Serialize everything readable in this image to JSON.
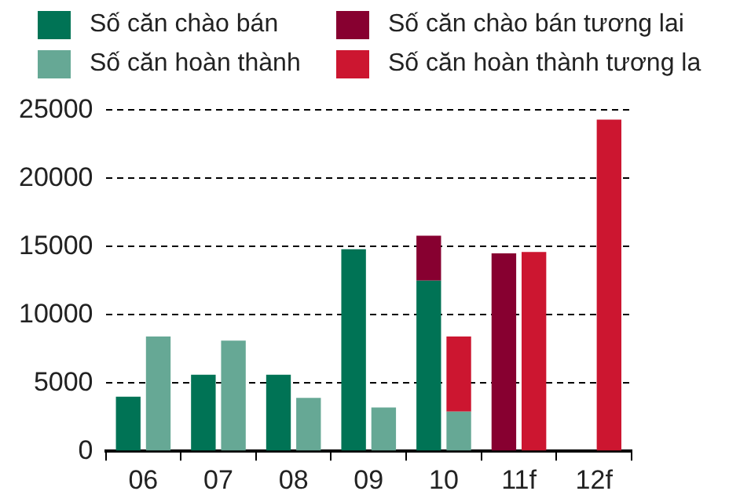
{
  "chart_data": {
    "type": "bar",
    "categories": [
      "06",
      "07",
      "08",
      "09",
      "10",
      "11f",
      "12f"
    ],
    "legend": "top",
    "grid": "y",
    "ylim": [
      0,
      25000
    ],
    "yticks": [
      0,
      5000,
      10000,
      15000,
      20000,
      25000
    ],
    "series": [
      {
        "name": "Số căn chào bán",
        "color": "#007355",
        "values": [
          4000,
          5600,
          5600,
          14800,
          12500,
          null,
          null
        ]
      },
      {
        "name": "Số căn chào bán tương lai",
        "color": "#870030",
        "values": [
          null,
          null,
          null,
          null,
          3300,
          14500,
          null
        ],
        "base": [
          null,
          null,
          null,
          null,
          12500,
          0,
          null
        ]
      },
      {
        "name": "Số căn hoàn thành",
        "color": "#66a895",
        "values": [
          8400,
          8100,
          3900,
          3200,
          2900,
          null,
          null
        ]
      },
      {
        "name": "Số căn hoàn thành tương la",
        "color": "#cc1630",
        "values": [
          null,
          null,
          null,
          null,
          5500,
          14600,
          24300
        ],
        "base": [
          null,
          null,
          null,
          null,
          2900,
          0,
          0
        ]
      }
    ]
  }
}
